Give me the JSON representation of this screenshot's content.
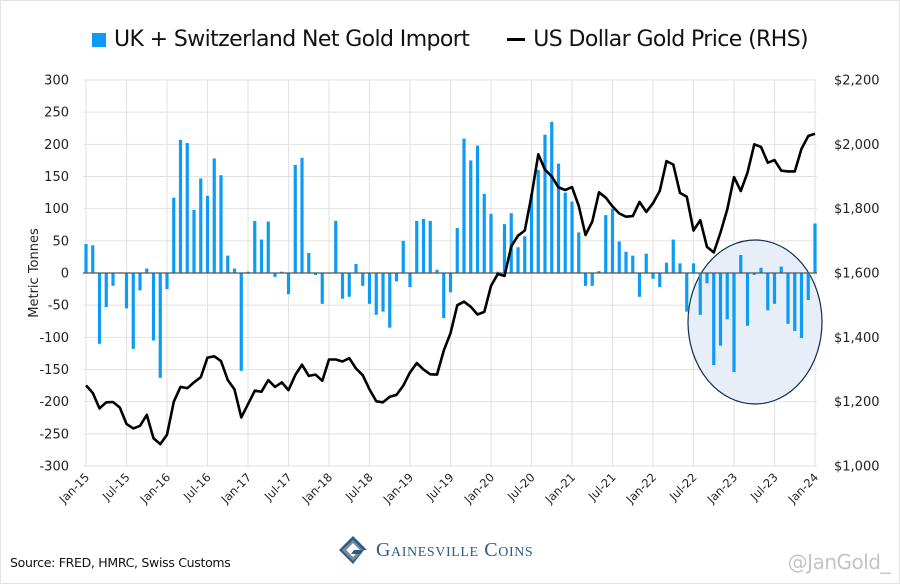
{
  "legend": {
    "bar_label": "UK + Switzerland Net Gold Import",
    "line_label": "US Dollar Gold Price (RHS)"
  },
  "footer": {
    "source": "Source: FRED, HMRC, Swiss Customs",
    "brand": "Gainesville Coins",
    "handle": "@JanGold_"
  },
  "colors": {
    "bar": "#0e9bf5",
    "line": "#000000",
    "highlight_fill": "#e8eef8",
    "highlight_stroke": "#0f2c4f",
    "grid": "#e2e2e2",
    "brand": "#2b5c86"
  },
  "chart_data": {
    "type": "bar+line",
    "title": "",
    "ylabel": "Metric Tonnes",
    "y2label": "US Dollar Gold Price",
    "ylim": [
      -300,
      300
    ],
    "y_ticks": [
      300,
      250,
      200,
      150,
      100,
      50,
      0,
      -50,
      -100,
      -150,
      -200,
      -250,
      -300
    ],
    "y2lim": [
      1000,
      2200
    ],
    "y2_ticks": [
      "$2,200",
      "$2,000",
      "$1,800",
      "$1,600",
      "$1,400",
      "$1,200",
      "$1,000"
    ],
    "y2_tick_values": [
      2200,
      2000,
      1800,
      1600,
      1400,
      1200,
      1000
    ],
    "x_tick_labels": [
      "Jan-15",
      "Jul-15",
      "Jan-16",
      "Jul-16",
      "Jan-17",
      "Jul-17",
      "Jan-18",
      "Jul-18",
      "Jan-19",
      "Jul-19",
      "Jan-20",
      "Jul-20",
      "Jan-21",
      "Jul-21",
      "Jan-22",
      "Jul-22",
      "Jan-23",
      "Jul-23",
      "Jan-24"
    ],
    "x_start": "Jan-15",
    "x_end": "Jan-24",
    "frequency": "monthly",
    "grid": true,
    "legend_position": "top",
    "annotation": "circle highlighting net outflows from mid-2022 to Jan-24",
    "series": [
      {
        "name": "UK + Switzerland Net Gold Import",
        "type": "bar",
        "axis": "left",
        "values": [
          45,
          43,
          -110,
          -53,
          -20,
          0,
          -55,
          -118,
          -27,
          7,
          -105,
          -163,
          -25,
          117,
          207,
          202,
          98,
          147,
          120,
          178,
          152,
          27,
          7,
          -152,
          2,
          81,
          52,
          80,
          -6,
          2,
          -33,
          168,
          179,
          31,
          -3,
          -48,
          0,
          81,
          -40,
          -37,
          14,
          -20,
          -48,
          -65,
          -60,
          -85,
          -13,
          50,
          -22,
          81,
          84,
          81,
          5,
          -70,
          -30,
          70,
          209,
          175,
          198,
          123,
          92,
          2,
          76,
          93,
          40,
          57,
          123,
          160,
          215,
          235,
          170,
          125,
          111,
          63,
          -20,
          -20,
          3,
          90,
          100,
          49,
          33,
          27,
          -37,
          30,
          -9,
          -22,
          16,
          52,
          15,
          -60,
          15,
          -65,
          -16,
          -143,
          -113,
          -72,
          -154,
          28,
          -82,
          -3,
          8,
          -58,
          -48,
          10,
          -79,
          -90,
          -101,
          -42,
          77
        ]
      },
      {
        "name": "US Dollar Gold Price (RHS)",
        "type": "line",
        "axis": "right",
        "values": [
          1251,
          1227,
          1179,
          1198,
          1199,
          1182,
          1131,
          1117,
          1125,
          1159,
          1086,
          1068,
          1097,
          1200,
          1246,
          1242,
          1260,
          1276,
          1337,
          1341,
          1326,
          1267,
          1238,
          1151,
          1192,
          1234,
          1231,
          1267,
          1246,
          1260,
          1236,
          1283,
          1315,
          1280,
          1284,
          1265,
          1331,
          1331,
          1325,
          1335,
          1303,
          1282,
          1238,
          1201,
          1198,
          1215,
          1221,
          1250,
          1291,
          1320,
          1300,
          1285,
          1284,
          1359,
          1413,
          1500,
          1511,
          1495,
          1471,
          1479,
          1560,
          1597,
          1591,
          1683,
          1716,
          1732,
          1840,
          1969,
          1921,
          1900,
          1866,
          1858,
          1867,
          1808,
          1718,
          1760,
          1851,
          1834,
          1807,
          1785,
          1775,
          1777,
          1821,
          1790,
          1817,
          1856,
          1948,
          1937,
          1849,
          1837,
          1732,
          1764,
          1681,
          1664,
          1726,
          1798,
          1898,
          1855,
          1912,
          2000,
          1992,
          1943,
          1951,
          1918,
          1916,
          1916,
          1986,
          2026,
          2033
        ]
      }
    ]
  }
}
